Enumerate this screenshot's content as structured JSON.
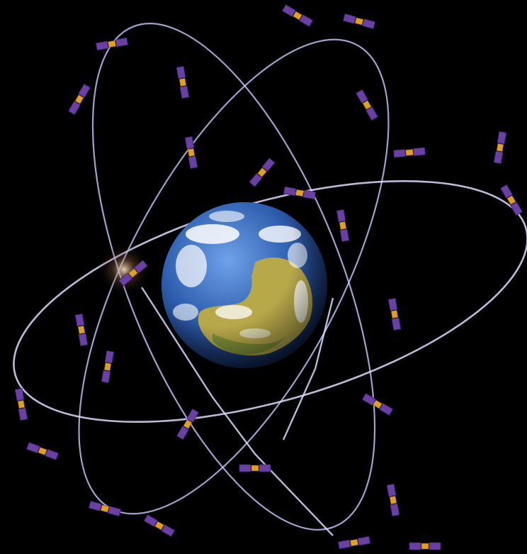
{
  "scene": {
    "subject": "satellite-constellation",
    "background_color": "#000000",
    "orbit_color": "#c8c8ff",
    "panel_color": "#6a3fa6",
    "body_color": "#e0a020",
    "ocean_color": "#2f5fb0",
    "land_color": "#b7a84a",
    "cloud_color": "#ffffff",
    "orbit_count": 3,
    "satellite_count": 27
  }
}
